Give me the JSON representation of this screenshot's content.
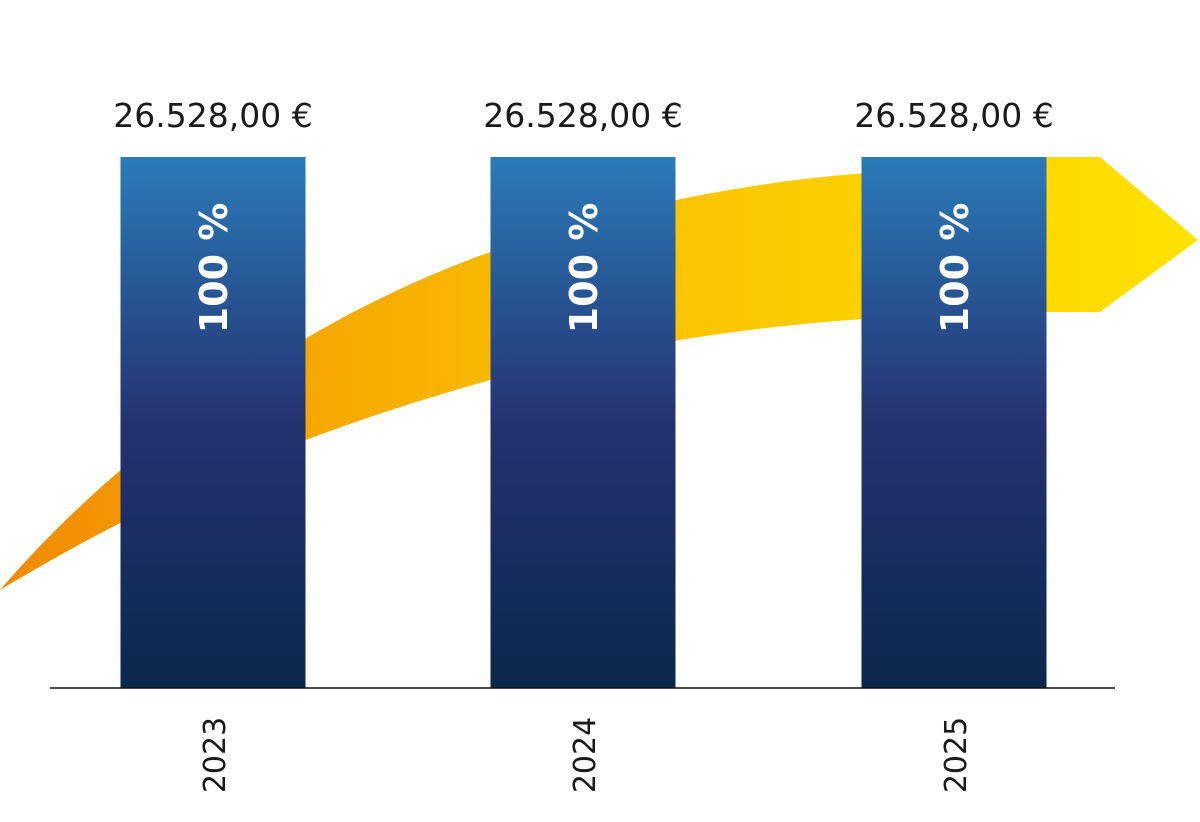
{
  "chart_data": {
    "type": "bar",
    "categories": [
      "2023",
      "2024",
      "2025"
    ],
    "values": [
      26528,
      26528,
      26528
    ],
    "value_labels": [
      "26.528,00 €",
      "26.528,00 €",
      "26.528,00 €"
    ],
    "percentages": [
      100,
      100,
      100
    ],
    "percentage_labels": [
      "100 %",
      "100 %",
      "100 %"
    ]
  }
}
